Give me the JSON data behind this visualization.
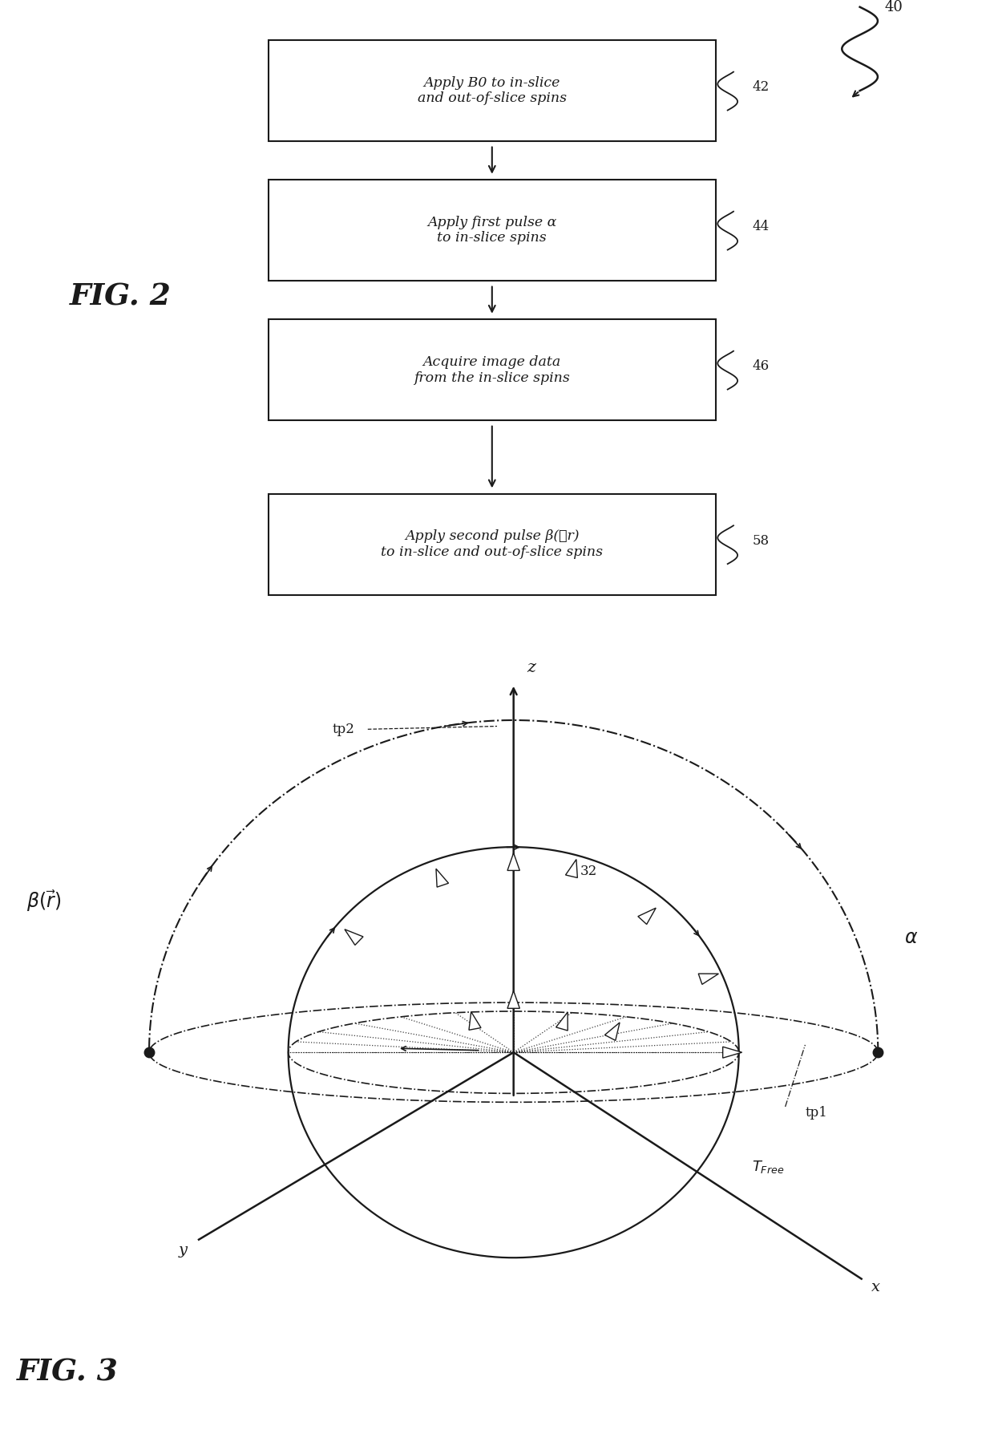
{
  "fig2": {
    "boxes": [
      {
        "text": "Apply B0 to in-slice\nand out-of-slice spins",
        "label": "42"
      },
      {
        "text": "Apply first pulse α\nto in-slice spins",
        "label": "44"
      },
      {
        "text": "Acquire image data\nfrom the in-slice spins",
        "label": "46"
      },
      {
        "text": "Apply second pulse β(⃗r)\nto in-slice and out-of-slice spins",
        "label": "58"
      }
    ]
  },
  "colors": {
    "black": "#1a1a1a",
    "white": "#ffffff",
    "background": "#ffffff"
  }
}
